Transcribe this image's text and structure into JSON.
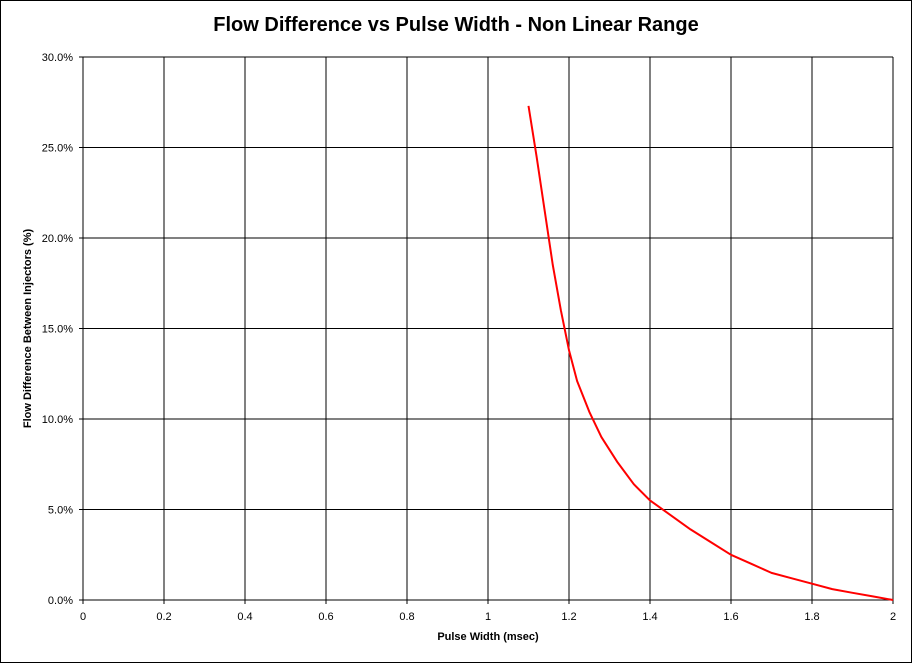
{
  "chart_data": {
    "type": "line",
    "title": "Flow Difference vs Pulse Width - Non Linear Range",
    "xlabel": "Pulse Width (msec)",
    "ylabel": "Flow Difference Between Injectors (%)",
    "xlim": [
      0,
      2
    ],
    "ylim": [
      0,
      30
    ],
    "x_ticks": [
      "0",
      "0.2",
      "0.4",
      "0.6",
      "0.8",
      "1",
      "1.2",
      "1.4",
      "1.6",
      "1.8",
      "2"
    ],
    "y_ticks": [
      "0.0%",
      "5.0%",
      "10.0%",
      "15.0%",
      "20.0%",
      "25.0%",
      "30.0%"
    ],
    "grid": true,
    "series": [
      {
        "color": "#ff0000",
        "x": [
          1.1,
          1.12,
          1.14,
          1.16,
          1.18,
          1.2,
          1.22,
          1.25,
          1.28,
          1.32,
          1.36,
          1.4,
          1.45,
          1.5,
          1.55,
          1.6,
          1.65,
          1.7,
          1.75,
          1.8,
          1.85,
          1.9,
          1.95,
          2.0
        ],
        "y": [
          27.3,
          24.5,
          21.5,
          18.5,
          16.0,
          13.8,
          12.1,
          10.4,
          9.0,
          7.6,
          6.4,
          5.5,
          4.7,
          3.9,
          3.2,
          2.5,
          2.0,
          1.5,
          1.2,
          0.9,
          0.6,
          0.4,
          0.2,
          0.0
        ]
      }
    ]
  }
}
